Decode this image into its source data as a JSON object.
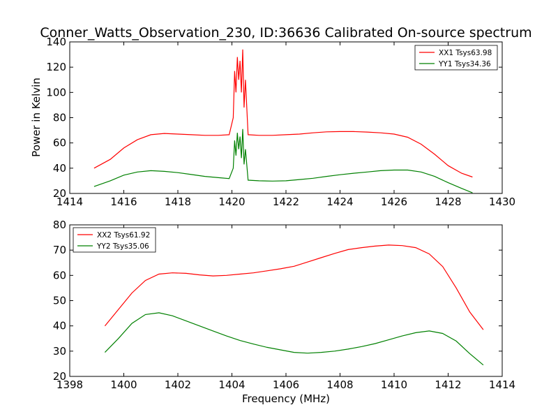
{
  "chart_data": [
    {
      "type": "line",
      "title": "Conner_Watts_Observation_230, ID:36636 Calibrated On-source spectrum",
      "xlabel": "",
      "ylabel": "Power in Kelvin",
      "xlim": [
        1414,
        1430
      ],
      "ylim": [
        20,
        140
      ],
      "xticks": [
        "1414",
        "1416",
        "1418",
        "1420",
        "1422",
        "1424",
        "1426",
        "1428",
        "1430"
      ],
      "yticks": [
        "20",
        "40",
        "60",
        "80",
        "100",
        "120",
        "140"
      ],
      "legend_position": "top-right",
      "grid": false,
      "series": [
        {
          "name": "XX1 Tsys63.98",
          "color": "#ff0000",
          "x": [
            1414.9,
            1415.5,
            1416.0,
            1416.5,
            1417.0,
            1417.5,
            1418.0,
            1418.5,
            1419.0,
            1419.5,
            1419.9,
            1420.05,
            1420.1,
            1420.15,
            1420.2,
            1420.25,
            1420.3,
            1420.35,
            1420.4,
            1420.45,
            1420.5,
            1420.6,
            1421.0,
            1421.5,
            1422.0,
            1422.5,
            1423.0,
            1423.5,
            1424.0,
            1424.5,
            1425.0,
            1425.5,
            1426.0,
            1426.5,
            1427.0,
            1427.5,
            1428.0,
            1428.5,
            1428.9
          ],
          "values": [
            40.0,
            47.0,
            56.0,
            62.5,
            66.5,
            67.5,
            67.0,
            66.5,
            66.0,
            66.0,
            66.5,
            80.0,
            117.0,
            100.0,
            128.0,
            110.0,
            125.0,
            100.0,
            134.0,
            88.0,
            110.0,
            66.5,
            66.0,
            66.0,
            66.5,
            67.0,
            68.0,
            68.8,
            69.0,
            69.0,
            68.6,
            68.0,
            67.0,
            64.5,
            59.0,
            51.0,
            42.0,
            36.0,
            33.0
          ]
        },
        {
          "name": "YY1 Tsys34.36",
          "color": "#008000",
          "x": [
            1414.9,
            1415.5,
            1416.0,
            1416.5,
            1417.0,
            1417.5,
            1418.0,
            1418.5,
            1419.0,
            1419.5,
            1419.9,
            1420.05,
            1420.1,
            1420.15,
            1420.2,
            1420.25,
            1420.3,
            1420.35,
            1420.4,
            1420.45,
            1420.5,
            1420.6,
            1421.0,
            1421.5,
            1422.0,
            1422.5,
            1423.0,
            1423.5,
            1424.0,
            1424.5,
            1425.0,
            1425.5,
            1426.0,
            1426.5,
            1427.0,
            1427.5,
            1428.0,
            1428.5,
            1428.9
          ],
          "values": [
            25.5,
            30.0,
            34.5,
            37.0,
            38.0,
            37.5,
            36.5,
            35.0,
            33.5,
            32.5,
            31.8,
            40.0,
            62.0,
            50.0,
            68.0,
            55.0,
            65.0,
            48.0,
            71.0,
            43.0,
            55.0,
            30.5,
            30.0,
            29.8,
            30.0,
            31.0,
            32.0,
            33.5,
            34.8,
            36.0,
            37.0,
            38.0,
            38.5,
            38.5,
            37.0,
            33.5,
            28.5,
            24.0,
            20.5
          ]
        }
      ]
    },
    {
      "type": "line",
      "title": "",
      "xlabel": "Frequency (MHz)",
      "ylabel": "",
      "xlim": [
        1398,
        1414
      ],
      "ylim": [
        20,
        80
      ],
      "xticks": [
        "1398",
        "1400",
        "1402",
        "1404",
        "1406",
        "1408",
        "1410",
        "1412",
        "1414"
      ],
      "yticks": [
        "20",
        "30",
        "40",
        "50",
        "60",
        "70",
        "80"
      ],
      "legend_position": "top-left",
      "grid": false,
      "series": [
        {
          "name": "XX2 Tsys61.92",
          "color": "#ff0000",
          "x": [
            1399.3,
            1399.8,
            1400.3,
            1400.8,
            1401.3,
            1401.8,
            1402.3,
            1402.8,
            1403.3,
            1403.8,
            1404.3,
            1404.8,
            1405.3,
            1405.8,
            1406.3,
            1406.8,
            1407.3,
            1407.8,
            1408.3,
            1408.8,
            1409.3,
            1409.8,
            1410.3,
            1410.8,
            1411.3,
            1411.8,
            1412.3,
            1412.8,
            1413.3
          ],
          "values": [
            40.0,
            46.5,
            53.0,
            58.0,
            60.5,
            61.0,
            60.8,
            60.2,
            59.8,
            60.0,
            60.5,
            61.0,
            61.8,
            62.6,
            63.6,
            65.3,
            67.0,
            68.7,
            70.2,
            71.0,
            71.6,
            72.0,
            71.8,
            71.0,
            68.5,
            63.5,
            55.0,
            45.5,
            38.5
          ]
        },
        {
          "name": "YY2 Tsys35.06",
          "color": "#008000",
          "x": [
            1399.3,
            1399.8,
            1400.3,
            1400.8,
            1401.3,
            1401.8,
            1402.3,
            1402.8,
            1403.3,
            1403.8,
            1404.3,
            1404.8,
            1405.3,
            1405.8,
            1406.3,
            1406.8,
            1407.3,
            1407.8,
            1408.3,
            1408.8,
            1409.3,
            1409.8,
            1410.3,
            1410.8,
            1411.3,
            1411.8,
            1412.3,
            1412.8,
            1413.3
          ],
          "values": [
            29.5,
            35.0,
            41.0,
            44.5,
            45.2,
            44.0,
            42.0,
            40.0,
            38.0,
            36.0,
            34.2,
            32.8,
            31.5,
            30.5,
            29.5,
            29.2,
            29.5,
            30.0,
            30.8,
            31.8,
            33.0,
            34.5,
            36.0,
            37.3,
            38.0,
            37.0,
            34.0,
            29.0,
            24.5
          ]
        }
      ]
    }
  ]
}
